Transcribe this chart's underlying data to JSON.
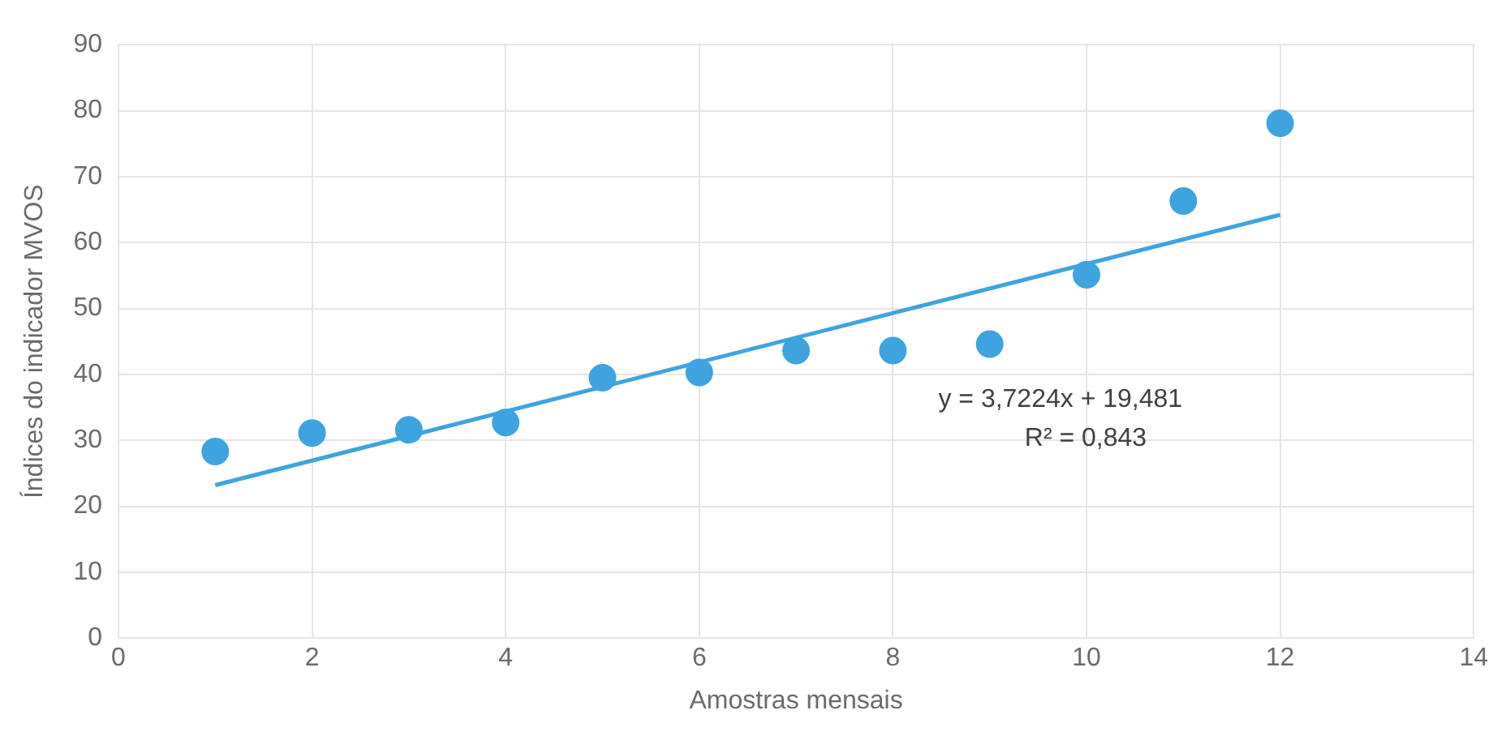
{
  "chart_data": {
    "type": "scatter",
    "xlabel": "Amostras mensais",
    "ylabel": "Índices do indicador MVOS",
    "x": [
      1,
      2,
      3,
      4,
      5,
      6,
      7,
      8,
      9,
      10,
      11,
      12
    ],
    "series": [
      {
        "type": "scatter",
        "color": "#3ea4e0",
        "marker": "circle",
        "values": [
          28.3,
          31.1,
          31.6,
          32.7,
          39.5,
          40.3,
          43.6,
          43.6,
          44.6,
          55.1,
          66.3,
          78.1
        ]
      },
      {
        "type": "line",
        "color": "#3ea4e0",
        "x": [
          1,
          12
        ],
        "values": [
          23.2,
          64.2
        ]
      }
    ],
    "xlim": [
      0,
      14
    ],
    "xticks": [
      0,
      2,
      4,
      6,
      8,
      10,
      12,
      14
    ],
    "ylim": [
      0,
      90
    ],
    "yticks": [
      0,
      10,
      20,
      30,
      40,
      50,
      60,
      70,
      80,
      90
    ],
    "grid": true,
    "annotations": [
      "y = 3,7224x + 19,481",
      "R² = 0,843"
    ]
  }
}
